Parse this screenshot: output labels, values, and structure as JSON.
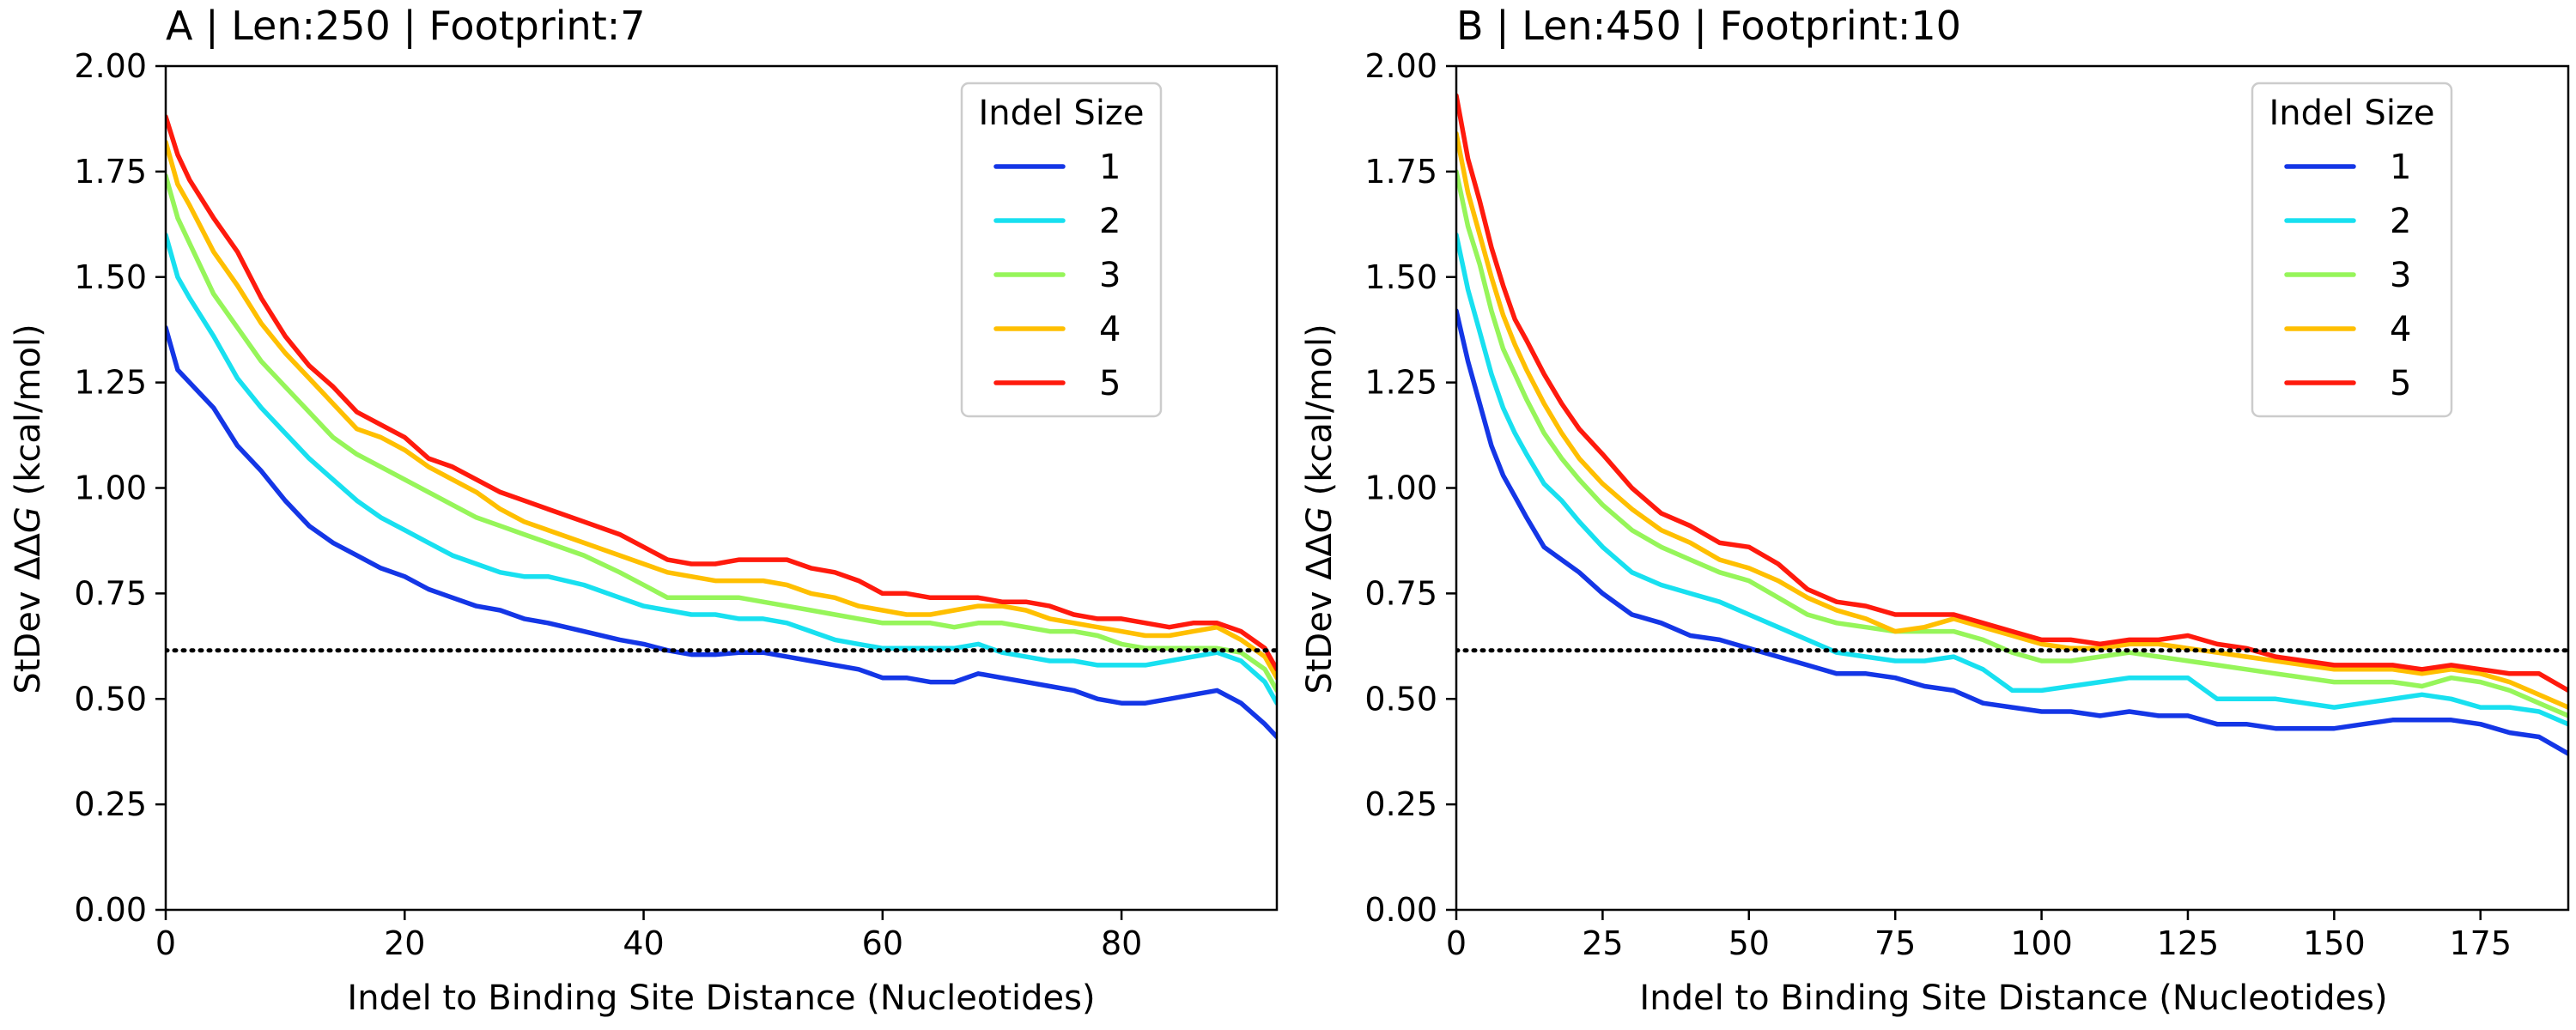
{
  "colors": {
    "1": "#1436e6",
    "2": "#18e0f0",
    "3": "#96f55a",
    "4": "#ffbf00",
    "5": "#ff1a0d",
    "reference": "#000000"
  },
  "chart_data": [
    {
      "type": "line",
      "title": "A | Len:250 | Footprint:7",
      "xlabel": "Indel to Binding Site Distance (Nucleotides)",
      "ylabel_prefix": "StDev ΔΔ",
      "ylabel_var": "G",
      "ylabel_suffix": " (kcal/mol)",
      "xlim": [
        0,
        93
      ],
      "ylim": [
        0,
        2.0
      ],
      "xticks": [
        0,
        20,
        40,
        60,
        80
      ],
      "yticks": [
        0,
        0.25,
        0.5,
        0.75,
        1.0,
        1.25,
        1.5,
        1.75,
        2.0
      ],
      "ytick_labels": [
        "0.00",
        "0.25",
        "0.50",
        "0.75",
        "1.00",
        "1.25",
        "1.50",
        "1.75",
        "2.00"
      ],
      "grid": false,
      "legend": {
        "title": "Indel Size",
        "placement": "top-right"
      },
      "reference_line": {
        "y": 0.615,
        "style": "dotted"
      },
      "series": [
        {
          "name": "1",
          "x": [
            0,
            1,
            2,
            4,
            6,
            8,
            10,
            12,
            14,
            16,
            18,
            20,
            22,
            24,
            26,
            28,
            30,
            32,
            35,
            38,
            40,
            42,
            44,
            46,
            48,
            50,
            52,
            54,
            56,
            58,
            60,
            62,
            64,
            66,
            68,
            70,
            72,
            74,
            76,
            78,
            80,
            82,
            84,
            86,
            88,
            90,
            92,
            93
          ],
          "y": [
            1.38,
            1.28,
            1.25,
            1.19,
            1.1,
            1.04,
            0.97,
            0.91,
            0.87,
            0.84,
            0.81,
            0.79,
            0.76,
            0.74,
            0.72,
            0.71,
            0.69,
            0.68,
            0.66,
            0.64,
            0.63,
            0.615,
            0.605,
            0.605,
            0.61,
            0.61,
            0.6,
            0.59,
            0.58,
            0.57,
            0.55,
            0.55,
            0.54,
            0.54,
            0.56,
            0.55,
            0.54,
            0.53,
            0.52,
            0.5,
            0.49,
            0.49,
            0.5,
            0.51,
            0.52,
            0.49,
            0.44,
            0.41
          ]
        },
        {
          "name": "2",
          "x": [
            0,
            1,
            2,
            4,
            6,
            8,
            10,
            12,
            14,
            16,
            18,
            20,
            22,
            24,
            26,
            28,
            30,
            32,
            35,
            38,
            40,
            42,
            44,
            46,
            48,
            50,
            52,
            54,
            56,
            58,
            60,
            62,
            64,
            66,
            68,
            70,
            72,
            74,
            76,
            78,
            80,
            82,
            84,
            86,
            88,
            90,
            92,
            93
          ],
          "y": [
            1.6,
            1.5,
            1.45,
            1.36,
            1.26,
            1.19,
            1.13,
            1.07,
            1.02,
            0.97,
            0.93,
            0.9,
            0.87,
            0.84,
            0.82,
            0.8,
            0.79,
            0.79,
            0.77,
            0.74,
            0.72,
            0.71,
            0.7,
            0.7,
            0.69,
            0.69,
            0.68,
            0.66,
            0.64,
            0.63,
            0.62,
            0.62,
            0.62,
            0.62,
            0.63,
            0.61,
            0.6,
            0.59,
            0.59,
            0.58,
            0.58,
            0.58,
            0.59,
            0.6,
            0.61,
            0.59,
            0.54,
            0.49
          ]
        },
        {
          "name": "3",
          "x": [
            0,
            1,
            2,
            4,
            6,
            8,
            10,
            12,
            14,
            16,
            18,
            20,
            22,
            24,
            26,
            28,
            30,
            32,
            35,
            38,
            40,
            42,
            44,
            46,
            48,
            50,
            52,
            54,
            56,
            58,
            60,
            62,
            64,
            66,
            68,
            70,
            72,
            74,
            76,
            78,
            80,
            82,
            84,
            86,
            88,
            90,
            92,
            93
          ],
          "y": [
            1.74,
            1.64,
            1.58,
            1.46,
            1.38,
            1.3,
            1.24,
            1.18,
            1.12,
            1.08,
            1.05,
            1.02,
            0.99,
            0.96,
            0.93,
            0.91,
            0.89,
            0.87,
            0.84,
            0.8,
            0.77,
            0.74,
            0.74,
            0.74,
            0.74,
            0.73,
            0.72,
            0.71,
            0.7,
            0.69,
            0.68,
            0.68,
            0.68,
            0.67,
            0.68,
            0.68,
            0.67,
            0.66,
            0.66,
            0.65,
            0.63,
            0.62,
            0.62,
            0.62,
            0.62,
            0.61,
            0.57,
            0.52
          ]
        },
        {
          "name": "4",
          "x": [
            0,
            1,
            2,
            4,
            6,
            8,
            10,
            12,
            14,
            16,
            18,
            20,
            22,
            24,
            26,
            28,
            30,
            32,
            35,
            38,
            40,
            42,
            44,
            46,
            48,
            50,
            52,
            54,
            56,
            58,
            60,
            62,
            64,
            66,
            68,
            70,
            72,
            74,
            76,
            78,
            80,
            82,
            84,
            86,
            88,
            90,
            92,
            93
          ],
          "y": [
            1.82,
            1.72,
            1.67,
            1.56,
            1.48,
            1.39,
            1.32,
            1.26,
            1.2,
            1.14,
            1.12,
            1.09,
            1.05,
            1.02,
            0.99,
            0.95,
            0.92,
            0.9,
            0.87,
            0.84,
            0.82,
            0.8,
            0.79,
            0.78,
            0.78,
            0.78,
            0.77,
            0.75,
            0.74,
            0.72,
            0.71,
            0.7,
            0.7,
            0.71,
            0.72,
            0.72,
            0.71,
            0.69,
            0.68,
            0.67,
            0.66,
            0.65,
            0.65,
            0.66,
            0.67,
            0.64,
            0.6,
            0.55
          ]
        },
        {
          "name": "5",
          "x": [
            0,
            1,
            2,
            4,
            6,
            8,
            10,
            12,
            14,
            16,
            18,
            20,
            22,
            24,
            26,
            28,
            30,
            32,
            35,
            38,
            40,
            42,
            44,
            46,
            48,
            50,
            52,
            54,
            56,
            58,
            60,
            62,
            64,
            66,
            68,
            70,
            72,
            74,
            76,
            78,
            80,
            82,
            84,
            86,
            88,
            90,
            92,
            93
          ],
          "y": [
            1.88,
            1.79,
            1.73,
            1.64,
            1.56,
            1.45,
            1.36,
            1.29,
            1.24,
            1.18,
            1.15,
            1.12,
            1.07,
            1.05,
            1.02,
            0.99,
            0.97,
            0.95,
            0.92,
            0.89,
            0.86,
            0.83,
            0.82,
            0.82,
            0.83,
            0.83,
            0.83,
            0.81,
            0.8,
            0.78,
            0.75,
            0.75,
            0.74,
            0.74,
            0.74,
            0.73,
            0.73,
            0.72,
            0.7,
            0.69,
            0.69,
            0.68,
            0.67,
            0.68,
            0.68,
            0.66,
            0.62,
            0.57
          ]
        }
      ]
    },
    {
      "type": "line",
      "title": "B | Len:450 | Footprint:10",
      "xlabel": "Indel to Binding Site Distance (Nucleotides)",
      "ylabel_prefix": "StDev ΔΔ",
      "ylabel_var": "G",
      "ylabel_suffix": " (kcal/mol)",
      "xlim": [
        0,
        190
      ],
      "ylim": [
        0,
        2.0
      ],
      "xticks": [
        0,
        25,
        50,
        75,
        100,
        125,
        150,
        175
      ],
      "yticks": [
        0,
        0.25,
        0.5,
        0.75,
        1.0,
        1.25,
        1.5,
        1.75,
        2.0
      ],
      "ytick_labels": [
        "0.00",
        "0.25",
        "0.50",
        "0.75",
        "1.00",
        "1.25",
        "1.50",
        "1.75",
        "2.00"
      ],
      "grid": false,
      "legend": {
        "title": "Indel Size",
        "placement": "top-right"
      },
      "reference_line": {
        "y": 0.615,
        "style": "dotted"
      },
      "series": [
        {
          "name": "1",
          "x": [
            0,
            2,
            4,
            6,
            8,
            10,
            12,
            15,
            18,
            21,
            25,
            30,
            35,
            40,
            45,
            50,
            55,
            60,
            65,
            70,
            75,
            80,
            85,
            90,
            95,
            100,
            105,
            110,
            115,
            120,
            125,
            130,
            135,
            140,
            145,
            150,
            155,
            160,
            165,
            170,
            175,
            180,
            185,
            190
          ],
          "y": [
            1.42,
            1.3,
            1.2,
            1.1,
            1.03,
            0.98,
            0.93,
            0.86,
            0.83,
            0.8,
            0.75,
            0.7,
            0.68,
            0.65,
            0.64,
            0.62,
            0.6,
            0.58,
            0.56,
            0.56,
            0.55,
            0.53,
            0.52,
            0.49,
            0.48,
            0.47,
            0.47,
            0.46,
            0.47,
            0.46,
            0.46,
            0.44,
            0.44,
            0.43,
            0.43,
            0.43,
            0.44,
            0.45,
            0.45,
            0.45,
            0.44,
            0.42,
            0.41,
            0.37
          ]
        },
        {
          "name": "2",
          "x": [
            0,
            2,
            4,
            6,
            8,
            10,
            12,
            15,
            18,
            21,
            25,
            30,
            35,
            40,
            45,
            50,
            55,
            60,
            65,
            70,
            75,
            80,
            85,
            90,
            95,
            100,
            105,
            110,
            115,
            120,
            125,
            130,
            135,
            140,
            145,
            150,
            155,
            160,
            165,
            170,
            175,
            180,
            185,
            190
          ],
          "y": [
            1.6,
            1.47,
            1.37,
            1.27,
            1.19,
            1.13,
            1.08,
            1.01,
            0.97,
            0.92,
            0.86,
            0.8,
            0.77,
            0.75,
            0.73,
            0.7,
            0.67,
            0.64,
            0.61,
            0.6,
            0.59,
            0.59,
            0.6,
            0.57,
            0.52,
            0.52,
            0.53,
            0.54,
            0.55,
            0.55,
            0.55,
            0.5,
            0.5,
            0.5,
            0.49,
            0.48,
            0.49,
            0.5,
            0.51,
            0.5,
            0.48,
            0.48,
            0.47,
            0.44
          ]
        },
        {
          "name": "3",
          "x": [
            0,
            2,
            4,
            6,
            8,
            10,
            12,
            15,
            18,
            21,
            25,
            30,
            35,
            40,
            45,
            50,
            55,
            60,
            65,
            70,
            75,
            80,
            85,
            90,
            95,
            100,
            105,
            110,
            115,
            120,
            125,
            130,
            135,
            140,
            145,
            150,
            155,
            160,
            165,
            170,
            175,
            180,
            185,
            190
          ],
          "y": [
            1.75,
            1.62,
            1.53,
            1.42,
            1.33,
            1.27,
            1.21,
            1.13,
            1.07,
            1.02,
            0.96,
            0.9,
            0.86,
            0.83,
            0.8,
            0.78,
            0.74,
            0.7,
            0.68,
            0.67,
            0.66,
            0.66,
            0.66,
            0.64,
            0.61,
            0.59,
            0.59,
            0.6,
            0.61,
            0.6,
            0.59,
            0.58,
            0.57,
            0.56,
            0.55,
            0.54,
            0.54,
            0.54,
            0.53,
            0.55,
            0.54,
            0.52,
            0.49,
            0.46
          ]
        },
        {
          "name": "4",
          "x": [
            0,
            2,
            4,
            6,
            8,
            10,
            12,
            15,
            18,
            21,
            25,
            30,
            35,
            40,
            45,
            50,
            55,
            60,
            65,
            70,
            75,
            80,
            85,
            90,
            95,
            100,
            105,
            110,
            115,
            120,
            125,
            130,
            135,
            140,
            145,
            150,
            155,
            160,
            165,
            170,
            175,
            180,
            185,
            190
          ],
          "y": [
            1.84,
            1.7,
            1.6,
            1.5,
            1.41,
            1.34,
            1.28,
            1.2,
            1.13,
            1.07,
            1.01,
            0.95,
            0.9,
            0.87,
            0.83,
            0.81,
            0.78,
            0.74,
            0.71,
            0.69,
            0.66,
            0.67,
            0.69,
            0.67,
            0.65,
            0.63,
            0.62,
            0.62,
            0.63,
            0.63,
            0.62,
            0.61,
            0.6,
            0.59,
            0.58,
            0.57,
            0.57,
            0.57,
            0.56,
            0.57,
            0.56,
            0.54,
            0.51,
            0.48
          ]
        },
        {
          "name": "5",
          "x": [
            0,
            2,
            4,
            6,
            8,
            10,
            12,
            15,
            18,
            21,
            25,
            30,
            35,
            40,
            45,
            50,
            55,
            60,
            65,
            70,
            75,
            80,
            85,
            90,
            95,
            100,
            105,
            110,
            115,
            120,
            125,
            130,
            135,
            140,
            145,
            150,
            155,
            160,
            165,
            170,
            175,
            180,
            185,
            190
          ],
          "y": [
            1.93,
            1.78,
            1.68,
            1.57,
            1.48,
            1.4,
            1.35,
            1.27,
            1.2,
            1.14,
            1.08,
            1.0,
            0.94,
            0.91,
            0.87,
            0.86,
            0.82,
            0.76,
            0.73,
            0.72,
            0.7,
            0.7,
            0.7,
            0.68,
            0.66,
            0.64,
            0.64,
            0.63,
            0.64,
            0.64,
            0.65,
            0.63,
            0.62,
            0.6,
            0.59,
            0.58,
            0.58,
            0.58,
            0.57,
            0.58,
            0.57,
            0.56,
            0.56,
            0.52
          ]
        }
      ]
    }
  ]
}
